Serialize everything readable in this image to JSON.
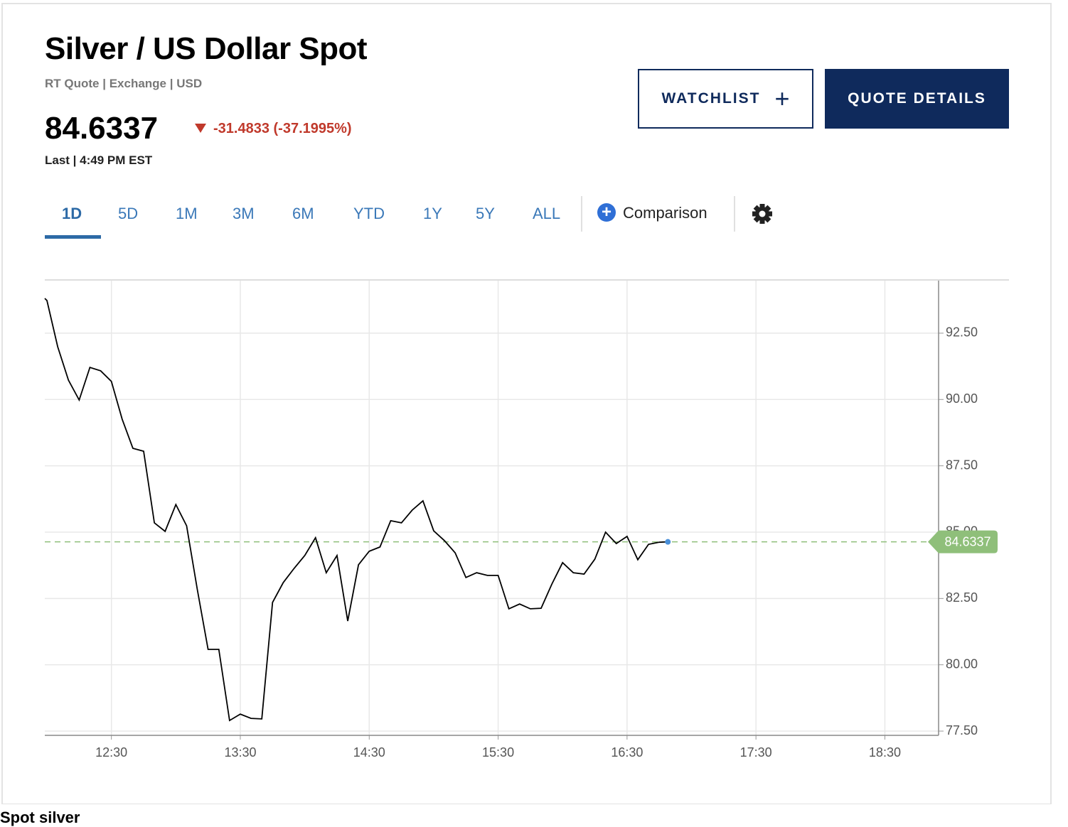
{
  "header": {
    "title": "Silver / US Dollar Spot",
    "subtitle": "RT Quote | Exchange | USD",
    "price": "84.6337",
    "change": "-31.4833 (-37.1995%)",
    "last_time": "Last | 4:49 PM EST"
  },
  "buttons": {
    "watchlist": "WATCHLIST",
    "quote_details": "QUOTE DETAILS"
  },
  "tabs": [
    "1D",
    "5D",
    "1M",
    "3M",
    "6M",
    "YTD",
    "1Y",
    "5Y",
    "ALL"
  ],
  "active_tab": 0,
  "comparison": "Comparison",
  "footer": "Spot silver",
  "chart_data": {
    "type": "line",
    "color": "#000000",
    "grid": true,
    "y_axis_side": "right",
    "x": [
      "11:59",
      "12:00",
      "12:05",
      "12:10",
      "12:15",
      "12:20",
      "12:25",
      "12:30",
      "12:35",
      "12:40",
      "12:45",
      "12:50",
      "12:55",
      "13:00",
      "13:05",
      "13:10",
      "13:15",
      "13:20",
      "13:25",
      "13:30",
      "13:35",
      "13:40",
      "13:45",
      "13:50",
      "13:55",
      "14:00",
      "14:05",
      "14:10",
      "14:15",
      "14:20",
      "14:25",
      "14:30",
      "14:35",
      "14:40",
      "14:45",
      "14:50",
      "14:55",
      "15:00",
      "15:05",
      "15:10",
      "15:15",
      "15:20",
      "15:25",
      "15:30",
      "15:35",
      "15:40",
      "15:45",
      "15:50",
      "15:55",
      "16:00",
      "16:05",
      "16:10",
      "16:15",
      "16:20",
      "16:25",
      "16:30",
      "16:35",
      "16:40",
      "16:45",
      "16:49"
    ],
    "values": [
      93.81,
      93.73,
      91.99,
      90.73,
      89.98,
      91.21,
      91.08,
      90.68,
      89.26,
      88.16,
      88.05,
      85.35,
      85.03,
      86.04,
      85.24,
      82.83,
      80.58,
      80.58,
      77.9,
      78.14,
      77.98,
      77.96,
      82.35,
      83.1,
      83.63,
      84.12,
      84.79,
      83.47,
      84.12,
      81.65,
      83.77,
      84.28,
      84.44,
      85.43,
      85.35,
      85.83,
      86.18,
      85.05,
      84.68,
      84.22,
      83.29,
      83.47,
      83.37,
      83.37,
      82.11,
      82.29,
      82.11,
      82.13,
      83.04,
      83.85,
      83.47,
      83.42,
      83.98,
      85.0,
      84.57,
      84.84,
      83.96,
      84.54,
      84.62,
      84.6337
    ],
    "last_value": 84.6337,
    "last_color": "#8fbf7a",
    "xlim": [
      "11:59",
      "18:55"
    ],
    "xticks": [
      "12:30",
      "13:30",
      "14:30",
      "15:30",
      "16:30",
      "17:30",
      "18:30"
    ],
    "ylim": [
      77.34,
      94.48
    ],
    "yticks": [
      {
        "value": 77.5,
        "label": "77.50"
      },
      {
        "value": 80,
        "label": "80.00"
      },
      {
        "value": 82.5,
        "label": "82.50"
      },
      {
        "value": 85,
        "label": "85.00"
      },
      {
        "value": 87.5,
        "label": "87.50"
      },
      {
        "value": 90,
        "label": "90.00"
      },
      {
        "value": 92.5,
        "label": "92.50"
      }
    ]
  }
}
